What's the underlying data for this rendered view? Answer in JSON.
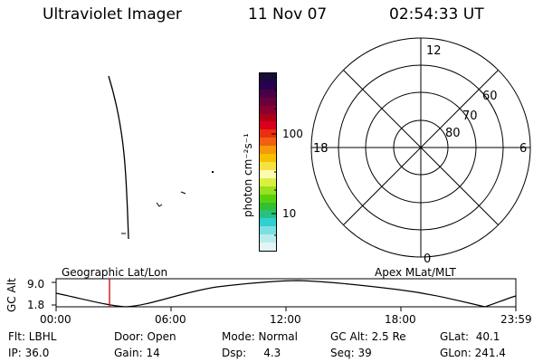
{
  "header": {
    "instrument": "Ultraviolet Imager",
    "date": "11 Nov 07",
    "time": "02:54:33 UT"
  },
  "colorbar": {
    "unit_label": "photon cm⁻²s⁻¹",
    "tick_100": "100",
    "tick_10": "10",
    "colors": [
      "#1a0a3a",
      "#2a0050",
      "#4a0046",
      "#6a003a",
      "#8a0030",
      "#b00018",
      "#d8001e",
      "#e83010",
      "#f06010",
      "#f49a08",
      "#f6c000",
      "#f4e240",
      "#fcfcb0",
      "#d8f040",
      "#98e020",
      "#58d010",
      "#30c030",
      "#28c080",
      "#30d0d0",
      "#7ce0e0",
      "#b8ecec",
      "#e4f4f4"
    ]
  },
  "polar": {
    "mlt_top": "12",
    "mlt_left": "18",
    "mlt_right": "6",
    "mlt_bottom": "0",
    "lat_60": "60",
    "lat_70": "70",
    "lat_80": "80"
  },
  "timeline": {
    "left_title": "Geographic Lat/Lon",
    "right_title": "Apex MLat/MLT",
    "axis_label": "GC Alt",
    "y_top": "9.0",
    "y_bottom": "1.8",
    "x_ticks": [
      "00:00",
      "06:00",
      "12:00",
      "18:00",
      "23:59"
    ],
    "current_marker_time": "02:54:33",
    "accent_color": "#cc0000"
  },
  "status": {
    "flt": "Flt: LBHL",
    "ip": "IP: 36.0",
    "door": "Door: Open",
    "gain": "Gain: 14",
    "mode": "Mode: Normal",
    "dsp": "Dsp:     4.3",
    "gc_alt": "GC Alt: 2.5 Re",
    "seq": "Seq: 39",
    "glat": "GLat:  40.1",
    "glon": "GLon: 241.4"
  }
}
